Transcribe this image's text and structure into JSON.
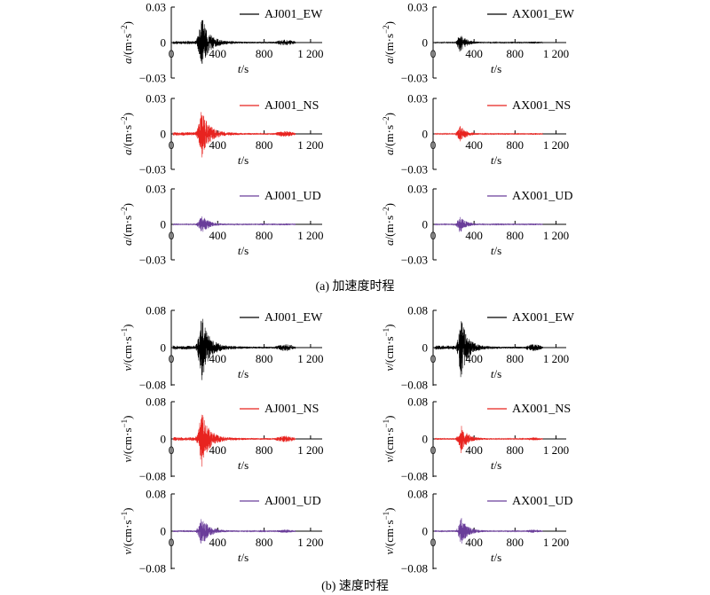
{
  "figure": {
    "caption_a": "(a) 加速度时程",
    "caption_b": "(b) 速度时程"
  },
  "colors": {
    "EW": "#000000",
    "NS": "#e8231f",
    "UD": "#6a3d9a"
  },
  "chart_data": [
    {
      "type": "line",
      "panel": "a",
      "station": "AJ001",
      "component": "EW",
      "series": [
        {
          "name": "AJ001_EW"
        }
      ],
      "x_ticks": [
        "0",
        "400",
        "800",
        "1 200"
      ],
      "xlabel_var": "t",
      "xlabel_unit": "/s",
      "y_ticks": [
        "0.03",
        "0",
        "−0.03"
      ],
      "ylabel_var": "a",
      "ylabel_unit": "/(m·s",
      "ylabel_exp": "−2",
      "ylabel_close": ")",
      "xlim": [
        0,
        1300
      ],
      "ylim": [
        -0.03,
        0.03
      ],
      "event_peak": 0.022,
      "event_time": 260
    },
    {
      "type": "line",
      "panel": "a",
      "station": "AX001",
      "component": "EW",
      "series": [
        {
          "name": "AX001_EW"
        }
      ],
      "x_ticks": [
        "0",
        "400",
        "800",
        "1 200"
      ],
      "xlabel_var": "t",
      "xlabel_unit": "/s",
      "y_ticks": [
        "0.03",
        "0",
        "−0.03"
      ],
      "ylabel_var": "a",
      "ylabel_unit": "/(m·s",
      "ylabel_exp": "−2",
      "ylabel_close": ")",
      "xlim": [
        0,
        1300
      ],
      "ylim": [
        -0.03,
        0.03
      ],
      "event_peak": 0.008,
      "event_time": 260
    },
    {
      "type": "line",
      "panel": "a",
      "station": "AJ001",
      "component": "NS",
      "series": [
        {
          "name": "AJ001_NS"
        }
      ],
      "x_ticks": [
        "0",
        "400",
        "800",
        "1 200"
      ],
      "xlabel_var": "t",
      "xlabel_unit": "/s",
      "y_ticks": [
        "0.03",
        "0",
        "−0.03"
      ],
      "ylabel_var": "a",
      "ylabel_unit": "/(m·s",
      "ylabel_exp": "−2",
      "ylabel_close": ")",
      "xlim": [
        0,
        1300
      ],
      "ylim": [
        -0.03,
        0.03
      ],
      "event_peak": 0.022,
      "event_time": 260
    },
    {
      "type": "line",
      "panel": "a",
      "station": "AX001",
      "component": "NS",
      "series": [
        {
          "name": "AX001_NS"
        }
      ],
      "x_ticks": [
        "0",
        "400",
        "800",
        "1 200"
      ],
      "xlabel_var": "t",
      "xlabel_unit": "/s",
      "y_ticks": [
        "0.03",
        "0",
        "−0.03"
      ],
      "ylabel_var": "a",
      "ylabel_unit": "/(m·s",
      "ylabel_exp": "−2",
      "ylabel_close": ")",
      "xlim": [
        0,
        1300
      ],
      "ylim": [
        -0.03,
        0.03
      ],
      "event_peak": 0.007,
      "event_time": 260
    },
    {
      "type": "line",
      "panel": "a",
      "station": "AJ001",
      "component": "UD",
      "series": [
        {
          "name": "AJ001_UD"
        }
      ],
      "x_ticks": [
        "0",
        "400",
        "800",
        "1 200"
      ],
      "xlabel_var": "t",
      "xlabel_unit": "/s",
      "y_ticks": [
        "0.03",
        "0",
        "−0.03"
      ],
      "ylabel_var": "a",
      "ylabel_unit": "/(m·s",
      "ylabel_exp": "−2",
      "ylabel_close": ")",
      "xlim": [
        0,
        1300
      ],
      "ylim": [
        -0.03,
        0.03
      ],
      "event_peak": 0.008,
      "event_time": 260
    },
    {
      "type": "line",
      "panel": "a",
      "station": "AX001",
      "component": "UD",
      "series": [
        {
          "name": "AX001_UD"
        }
      ],
      "x_ticks": [
        "0",
        "400",
        "800",
        "1 200"
      ],
      "xlabel_var": "t",
      "xlabel_unit": "/s",
      "y_ticks": [
        "0.03",
        "0",
        "−0.03"
      ],
      "ylabel_var": "a",
      "ylabel_unit": "/(m·s",
      "ylabel_exp": "−2",
      "ylabel_close": ")",
      "xlim": [
        0,
        1300
      ],
      "ylim": [
        -0.03,
        0.03
      ],
      "event_peak": 0.007,
      "event_time": 260
    },
    {
      "type": "line",
      "panel": "b",
      "station": "AJ001",
      "component": "EW",
      "series": [
        {
          "name": "AJ001_EW"
        }
      ],
      "x_ticks": [
        "0",
        "400",
        "800",
        "1 200"
      ],
      "xlabel_var": "t",
      "xlabel_unit": "/s",
      "y_ticks": [
        "0.08",
        "0",
        "−0.08"
      ],
      "ylabel_var": "v",
      "ylabel_unit": "/(cm·s",
      "ylabel_exp": "−1",
      "ylabel_close": ")",
      "xlim": [
        0,
        1300
      ],
      "ylim": [
        -0.08,
        0.08
      ],
      "event_peak": 0.07,
      "event_time": 260
    },
    {
      "type": "line",
      "panel": "b",
      "station": "AX001",
      "component": "EW",
      "series": [
        {
          "name": "AX001_EW"
        }
      ],
      "x_ticks": [
        "0",
        "400",
        "800",
        "1 200"
      ],
      "xlabel_var": "t",
      "xlabel_unit": "/s",
      "y_ticks": [
        "0.08",
        "0",
        "−0.08"
      ],
      "ylabel_var": "v",
      "ylabel_unit": "/(cm·s",
      "ylabel_exp": "−1",
      "ylabel_close": ")",
      "xlim": [
        0,
        1300
      ],
      "ylim": [
        -0.08,
        0.08
      ],
      "event_peak": 0.065,
      "event_time": 270
    },
    {
      "type": "line",
      "panel": "b",
      "station": "AJ001",
      "component": "NS",
      "series": [
        {
          "name": "AJ001_NS"
        }
      ],
      "x_ticks": [
        "0",
        "400",
        "800",
        "1 200"
      ],
      "xlabel_var": "t",
      "xlabel_unit": "/s",
      "y_ticks": [
        "0.08",
        "0",
        "−0.08"
      ],
      "ylabel_var": "v",
      "ylabel_unit": "/(cm·s",
      "ylabel_exp": "−1",
      "ylabel_close": ")",
      "xlim": [
        0,
        1300
      ],
      "ylim": [
        -0.08,
        0.08
      ],
      "event_peak": 0.06,
      "event_time": 260
    },
    {
      "type": "line",
      "panel": "b",
      "station": "AX001",
      "component": "NS",
      "series": [
        {
          "name": "AX001_NS"
        }
      ],
      "x_ticks": [
        "0",
        "400",
        "800",
        "1 200"
      ],
      "xlabel_var": "t",
      "xlabel_unit": "/s",
      "y_ticks": [
        "0.08",
        "0",
        "−0.08"
      ],
      "ylabel_var": "v",
      "ylabel_unit": "/(cm·s",
      "ylabel_exp": "−1",
      "ylabel_close": ")",
      "xlim": [
        0,
        1300
      ],
      "ylim": [
        -0.08,
        0.08
      ],
      "event_peak": 0.03,
      "event_time": 270
    },
    {
      "type": "line",
      "panel": "b",
      "station": "AJ001",
      "component": "UD",
      "series": [
        {
          "name": "AJ001_UD"
        }
      ],
      "x_ticks": [
        "0",
        "400",
        "800",
        "1 200"
      ],
      "xlabel_var": "t",
      "xlabel_unit": "/s",
      "y_ticks": [
        "0.08",
        "0",
        "−0.08"
      ],
      "ylabel_var": "v",
      "ylabel_unit": "/(cm·s",
      "ylabel_exp": "−1",
      "ylabel_close": ")",
      "xlim": [
        0,
        1300
      ],
      "ylim": [
        -0.08,
        0.08
      ],
      "event_peak": 0.032,
      "event_time": 260
    },
    {
      "type": "line",
      "panel": "b",
      "station": "AX001",
      "component": "UD",
      "series": [
        {
          "name": "AX001_UD"
        }
      ],
      "x_ticks": [
        "0",
        "400",
        "800",
        "1 200"
      ],
      "xlabel_var": "t",
      "xlabel_unit": "/s",
      "y_ticks": [
        "0.08",
        "0",
        "−0.08"
      ],
      "ylabel_var": "v",
      "ylabel_unit": "/(cm·s",
      "ylabel_exp": "−1",
      "ylabel_close": ")",
      "xlim": [
        0,
        1300
      ],
      "ylim": [
        -0.08,
        0.08
      ],
      "event_peak": 0.03,
      "event_time": 270
    }
  ]
}
